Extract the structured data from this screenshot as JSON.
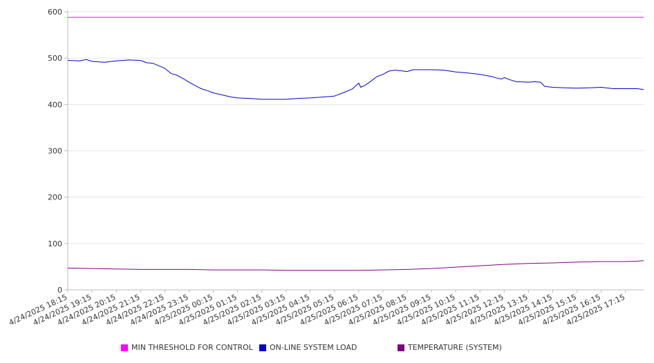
{
  "chart_data": {
    "type": "line",
    "title": "",
    "xlabel": "",
    "ylabel": "",
    "ylim": [
      0,
      600
    ],
    "y_ticks": [
      0,
      100,
      200,
      300,
      400,
      500,
      600
    ],
    "grid": "horizontal",
    "legend_position": "bottom",
    "x_tick_labels": [
      "4/24/2025 18:15",
      "4/24/2025 19:15",
      "4/24/2025 20:15",
      "4/24/2025 21:15",
      "4/24/2025 22:15",
      "4/24/2025 23:15",
      "4/25/2025 00:15",
      "4/25/2025 01:15",
      "4/25/2025 02:15",
      "4/25/2025 03:15",
      "4/25/2025 04:15",
      "4/25/2025 05:15",
      "4/25/2025 06:15",
      "4/25/2025 07:15",
      "4/25/2025 08:15",
      "4/25/2025 09:15",
      "4/25/2025 10:15",
      "4/25/2025 11:15",
      "4/25/2025 12:15",
      "4/25/2025 13:15",
      "4/25/2025 14:15",
      "4/25/2025 15:15",
      "4/25/2025 16:15",
      "4/25/2025 17:15"
    ],
    "x_range": [
      "4/24/2025 18:15",
      "4/25/2025 18:00"
    ],
    "series": [
      {
        "name": "MIN THRESHOLD FOR CONTROL",
        "color": "#ff00ff",
        "points": [
          [
            "4/24/2025 18:15",
            588
          ],
          [
            "4/25/2025 18:00",
            588
          ]
        ]
      },
      {
        "name": "ON-LINE SYSTEM LOAD",
        "color": "#0000cc",
        "points": [
          [
            "4/24/2025 18:15",
            495
          ],
          [
            "4/24/2025 18:45",
            494
          ],
          [
            "4/24/2025 19:00",
            497
          ],
          [
            "4/24/2025 19:15",
            493
          ],
          [
            "4/24/2025 19:45",
            491
          ],
          [
            "4/24/2025 20:15",
            494
          ],
          [
            "4/24/2025 20:45",
            496
          ],
          [
            "4/24/2025 21:15",
            495
          ],
          [
            "4/24/2025 21:30",
            490
          ],
          [
            "4/24/2025 21:45",
            489
          ],
          [
            "4/24/2025 22:15",
            478
          ],
          [
            "4/24/2025 22:30",
            467
          ],
          [
            "4/24/2025 22:45",
            463
          ],
          [
            "4/24/2025 23:00",
            456
          ],
          [
            "4/24/2025 23:15",
            448
          ],
          [
            "4/24/2025 23:30",
            441
          ],
          [
            "4/24/2025 23:45",
            434
          ],
          [
            "4/25/2025 00:00",
            430
          ],
          [
            "4/25/2025 00:15",
            425
          ],
          [
            "4/25/2025 00:30",
            422
          ],
          [
            "4/25/2025 00:45",
            419
          ],
          [
            "4/25/2025 01:00",
            416
          ],
          [
            "4/25/2025 01:15",
            414
          ],
          [
            "4/25/2025 01:45",
            413
          ],
          [
            "4/25/2025 02:15",
            411
          ],
          [
            "4/25/2025 02:45",
            411
          ],
          [
            "4/25/2025 03:15",
            411
          ],
          [
            "4/25/2025 03:45",
            413
          ],
          [
            "4/25/2025 04:15",
            414
          ],
          [
            "4/25/2025 04:45",
            416
          ],
          [
            "4/25/2025 05:15",
            418
          ],
          [
            "4/25/2025 05:30",
            423
          ],
          [
            "4/25/2025 05:45",
            428
          ],
          [
            "4/25/2025 06:00",
            434
          ],
          [
            "4/25/2025 06:15",
            446
          ],
          [
            "4/25/2025 06:20",
            437
          ],
          [
            "4/25/2025 06:30",
            441
          ],
          [
            "4/25/2025 06:45",
            450
          ],
          [
            "4/25/2025 07:00",
            460
          ],
          [
            "4/25/2025 07:15",
            465
          ],
          [
            "4/25/2025 07:30",
            472
          ],
          [
            "4/25/2025 07:45",
            474
          ],
          [
            "4/25/2025 08:15",
            471
          ],
          [
            "4/25/2025 08:30",
            475
          ],
          [
            "4/25/2025 09:15",
            475
          ],
          [
            "4/25/2025 09:45",
            474
          ],
          [
            "4/25/2025 10:15",
            470
          ],
          [
            "4/25/2025 10:45",
            468
          ],
          [
            "4/25/2025 11:15",
            465
          ],
          [
            "4/25/2025 11:45",
            460
          ],
          [
            "4/25/2025 12:00",
            456
          ],
          [
            "4/25/2025 12:10",
            455
          ],
          [
            "4/25/2025 12:15",
            458
          ],
          [
            "4/25/2025 12:30",
            453
          ],
          [
            "4/25/2025 12:45",
            449
          ],
          [
            "4/25/2025 13:15",
            448
          ],
          [
            "4/25/2025 13:30",
            449
          ],
          [
            "4/25/2025 13:45",
            448
          ],
          [
            "4/25/2025 13:55",
            439
          ],
          [
            "4/25/2025 14:15",
            437
          ],
          [
            "4/25/2025 14:45",
            436
          ],
          [
            "4/25/2025 15:15",
            435
          ],
          [
            "4/25/2025 15:45",
            436
          ],
          [
            "4/25/2025 16:15",
            437
          ],
          [
            "4/25/2025 16:45",
            434
          ],
          [
            "4/25/2025 17:15",
            434
          ],
          [
            "4/25/2025 17:45",
            434
          ],
          [
            "4/25/2025 18:00",
            432
          ]
        ]
      },
      {
        "name": "TEMPERATURE (SYSTEM)",
        "color": "#800080",
        "points": [
          [
            "4/24/2025 18:15",
            47
          ],
          [
            "4/24/2025 19:15",
            46
          ],
          [
            "4/24/2025 20:15",
            45
          ],
          [
            "4/24/2025 21:15",
            44
          ],
          [
            "4/24/2025 22:15",
            44
          ],
          [
            "4/24/2025 23:15",
            44
          ],
          [
            "4/25/2025 00:15",
            43
          ],
          [
            "4/25/2025 01:15",
            43
          ],
          [
            "4/25/2025 02:15",
            43
          ],
          [
            "4/25/2025 03:15",
            42
          ],
          [
            "4/25/2025 04:15",
            42
          ],
          [
            "4/25/2025 05:15",
            42
          ],
          [
            "4/25/2025 06:15",
            42
          ],
          [
            "4/25/2025 07:15",
            43
          ],
          [
            "4/25/2025 08:15",
            44
          ],
          [
            "4/25/2025 09:15",
            46
          ],
          [
            "4/25/2025 10:15",
            49
          ],
          [
            "4/25/2025 11:15",
            52
          ],
          [
            "4/25/2025 12:15",
            55
          ],
          [
            "4/25/2025 13:15",
            57
          ],
          [
            "4/25/2025 14:15",
            58
          ],
          [
            "4/25/2025 15:15",
            60
          ],
          [
            "4/25/2025 16:15",
            61
          ],
          [
            "4/25/2025 17:15",
            61
          ],
          [
            "4/25/2025 17:45",
            62
          ],
          [
            "4/25/2025 18:00",
            63
          ]
        ]
      }
    ]
  }
}
